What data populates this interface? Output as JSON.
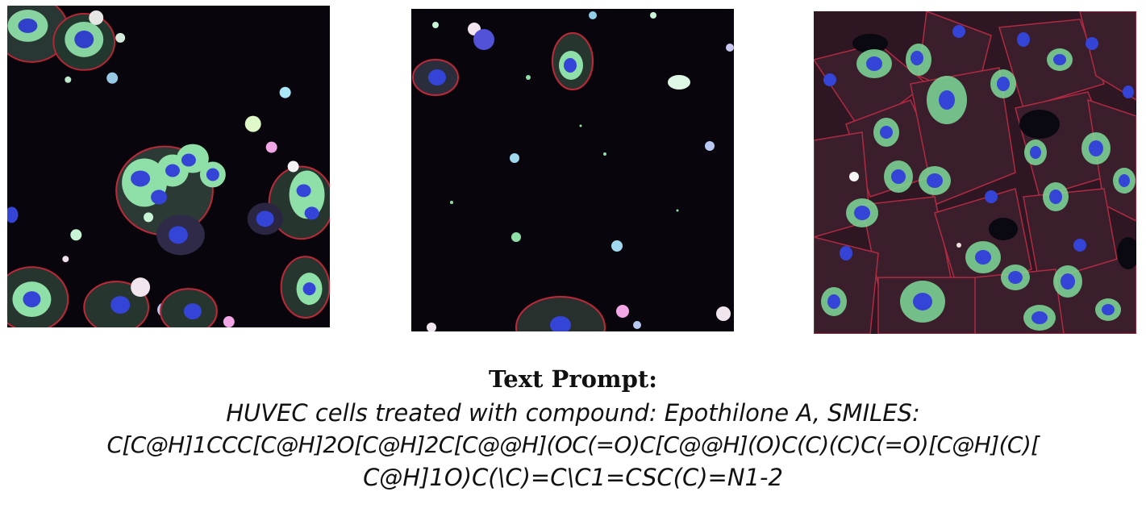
{
  "images": [
    {
      "label": "",
      "color_scheme": {
        "nucleus": "#2f3fd8",
        "cytoplasm": "#7fdc9a",
        "membrane": "#c0283a",
        "background": "#08060c"
      }
    },
    {
      "label": "",
      "color_scheme": {
        "nucleus": "#2f3fd8",
        "cytoplasm": "#7fdc9a",
        "membrane": "#c0283a",
        "background": "#08060c"
      }
    },
    {
      "label": "",
      "color_scheme": {
        "nucleus": "#2f3fd8",
        "cytoplasm": "#7fdc9a",
        "membrane": "#c0283a",
        "background": "#08060c"
      }
    }
  ],
  "caption": {
    "heading": "Text Prompt:",
    "lines": [
      "HUVEC cells treated with compound: Epothilone A, SMILES:",
      "C[C@H]1CCC[C@H]2O[C@H]2C[C@@H](OC(=O)C[C@@H](O)C(C)(C)C(=O)[C@H](C)[",
      "C@H]1O)C(\\C)=C\\C1=CSC(C)=N1-2"
    ]
  }
}
